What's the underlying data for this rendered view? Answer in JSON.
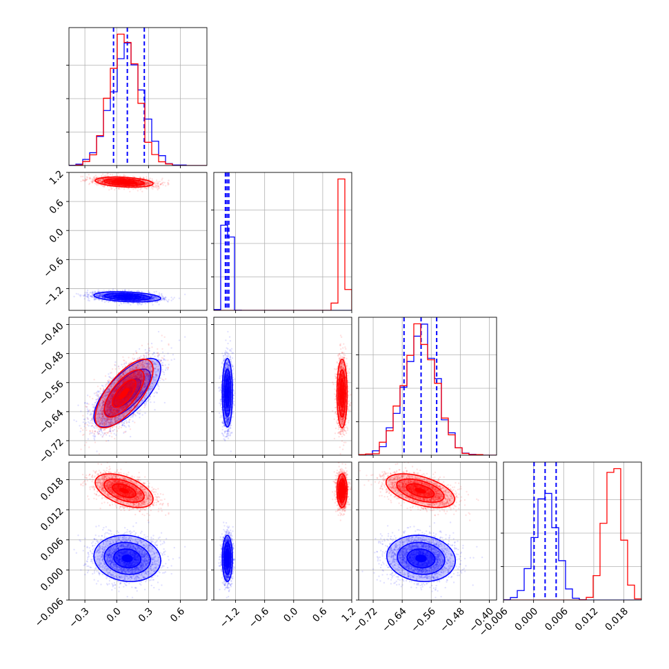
{
  "chart_data": {
    "type": "corner",
    "colors": {
      "a": "#0000ff",
      "b": "#ff0000"
    },
    "grid": true,
    "parameters": [
      {
        "range": [
          -0.45,
          0.85
        ],
        "ticks": [
          "−0.3",
          "0.0",
          "0.3",
          "0.6"
        ],
        "tick_values": [
          -0.3,
          0.0,
          0.3,
          0.6
        ]
      },
      {
        "range": [
          -1.65,
          1.2
        ],
        "ticks": [
          "−1.2",
          "−0.6",
          "0.0",
          "0.6",
          "1.2"
        ],
        "tick_values": [
          -1.2,
          -0.6,
          0.0,
          0.6,
          1.2
        ]
      },
      {
        "range": [
          -0.76,
          -0.38
        ],
        "ticks": [
          "−0.72",
          "−0.64",
          "−0.56",
          "−0.48",
          "−0.40"
        ],
        "tick_values": [
          -0.72,
          -0.64,
          -0.56,
          -0.48,
          -0.4
        ]
      },
      {
        "range": [
          -0.006,
          0.0215
        ],
        "ticks": [
          "−0.006",
          "0.000",
          "0.006",
          "0.012",
          "0.018"
        ],
        "tick_values": [
          -0.006,
          0.0,
          0.006,
          0.012,
          0.018
        ]
      }
    ],
    "series": [
      {
        "key": "a",
        "mean": [
          0.1,
          -1.37,
          -0.588,
          0.0023
        ],
        "std": [
          0.15,
          0.05,
          0.045,
          0.0022
        ],
        "corr": [
          [
            1,
            -0.3,
            0.7,
            -0.1
          ],
          [
            -0.3,
            1,
            0.0,
            0.0
          ],
          [
            0.7,
            0.0,
            1,
            -0.1
          ],
          [
            -0.1,
            0.0,
            -0.1,
            1
          ]
        ],
        "quantiles": [
          [
            -0.03,
            0.1,
            0.26
          ],
          [
            -1.41,
            -1.375,
            -1.34
          ],
          [
            -0.635,
            -0.588,
            -0.545
          ],
          [
            0.0001,
            0.0023,
            0.0045
          ]
        ]
      },
      {
        "key": "b",
        "mean": [
          0.07,
          1.0,
          -0.59,
          0.0158
        ],
        "std": [
          0.13,
          0.05,
          0.045,
          0.0016
        ],
        "corr": [
          [
            1,
            -0.3,
            0.7,
            -0.5
          ],
          [
            -0.3,
            1,
            0.0,
            0.0
          ],
          [
            0.7,
            0.0,
            1,
            -0.5
          ],
          [
            -0.5,
            0.0,
            -0.5,
            1
          ]
        ],
        "quantiles": []
      }
    ]
  }
}
